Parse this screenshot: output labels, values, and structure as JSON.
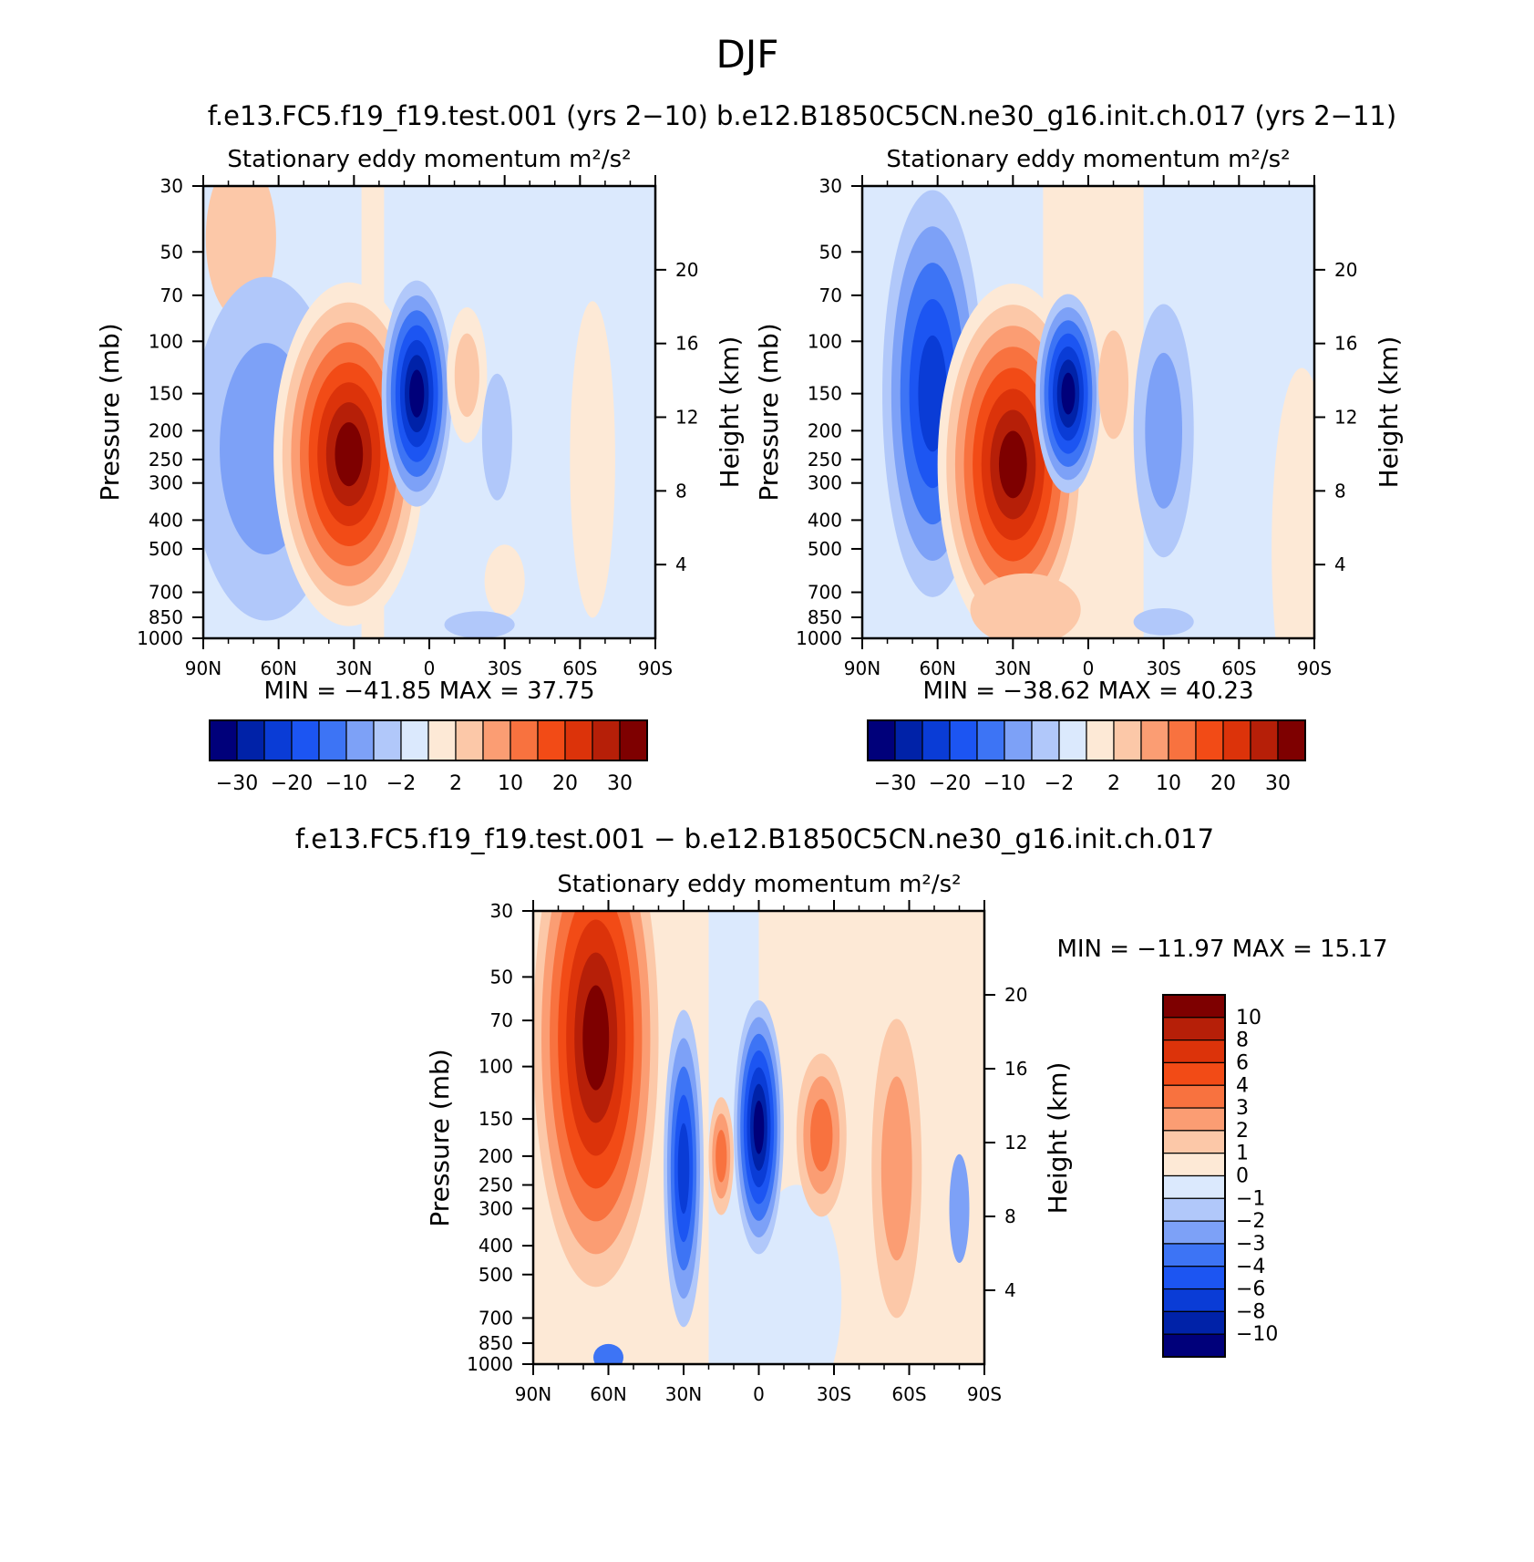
{
  "figure": {
    "title": "DJF",
    "top_header": "f.e13.FC5.f19_f19.test.001 (yrs 2−10)  b.e12.B1850C5CN.ne30_g16.init.ch.017 (yrs 2−11)",
    "bottom_header": "f.e13.FC5.f19_f19.test.001 − b.e12.B1850C5CN.ne30_g16.init.ch.017"
  },
  "palette": {
    "levels16": [
      "#00007a",
      "#0022a8",
      "#0a3cd6",
      "#1c55f2",
      "#3d74f5",
      "#7da1f7",
      "#b1c8fa",
      "#dbe9fd",
      "#fde9d6",
      "#fcc8a8",
      "#fb9d73",
      "#f8723f",
      "#f24b16",
      "#dc330a",
      "#b61f08",
      "#7e0000"
    ],
    "levels16_diff": [
      "#00007a",
      "#0022a8",
      "#0a3cd6",
      "#1c55f2",
      "#3d74f5",
      "#7da1f7",
      "#b1c8fa",
      "#dbe9fd",
      "#fde9d6",
      "#fcc8a8",
      "#fb9d73",
      "#f8723f",
      "#f24b16",
      "#dc330a",
      "#b61f08",
      "#7e0000"
    ]
  },
  "chart_data": [
    {
      "type": "heatmap",
      "panel": "top-left",
      "title": "Stationary eddy momentum  m²/s²",
      "xlabel": "",
      "ylabel": "Pressure (mb)",
      "ylabel_right": "Height (km)",
      "x_ticks": [
        "90N",
        "60N",
        "30N",
        "0",
        "30S",
        "60S",
        "90S"
      ],
      "y_ticks": [
        "30",
        "50",
        "70",
        "100",
        "150",
        "200",
        "250",
        "300",
        "400",
        "500",
        "700",
        "850",
        "1000"
      ],
      "y_ticks_right": [
        "20",
        "16",
        "12",
        "8",
        "4"
      ],
      "min_label": "MIN =  −41.85   MAX =   37.75",
      "min": -41.85,
      "max": 37.75,
      "colorbar_labels": [
        "−30",
        "−20",
        "−10",
        "−2",
        "2",
        "10",
        "20",
        "30"
      ],
      "features": [
        {
          "lat": 30,
          "p": 200,
          "value": 37.75
        },
        {
          "lat": 5,
          "p": 150,
          "value": -41.85
        },
        {
          "lat": 65,
          "p": 200,
          "value": -8
        },
        {
          "lat": -10,
          "p": 150,
          "value": 6
        }
      ]
    },
    {
      "type": "heatmap",
      "panel": "top-right",
      "title": "Stationary eddy momentum  m²/s²",
      "xlabel": "",
      "ylabel": "Pressure (mb)",
      "ylabel_right": "Height (km)",
      "x_ticks": [
        "90N",
        "60N",
        "30N",
        "0",
        "30S",
        "60S",
        "90S"
      ],
      "y_ticks": [
        "30",
        "50",
        "70",
        "100",
        "150",
        "200",
        "250",
        "300",
        "400",
        "500",
        "700",
        "850",
        "1000"
      ],
      "y_ticks_right": [
        "20",
        "16",
        "12",
        "8",
        "4"
      ],
      "min_label": "MIN =  −38.62   MAX =   40.23",
      "min": -38.62,
      "max": 40.23,
      "colorbar_labels": [
        "−30",
        "−20",
        "−10",
        "−2",
        "2",
        "10",
        "20",
        "30"
      ],
      "features": [
        {
          "lat": 30,
          "p": 250,
          "value": 40.23
        },
        {
          "lat": 8,
          "p": 150,
          "value": -38.62
        },
        {
          "lat": 62,
          "p": 100,
          "value": -18
        },
        {
          "lat": -25,
          "p": 150,
          "value": -8
        }
      ]
    },
    {
      "type": "heatmap",
      "panel": "bottom",
      "title": "Stationary eddy momentum  m²/s²",
      "xlabel": "",
      "ylabel": "Pressure (mb)",
      "ylabel_right": "Height (km)",
      "x_ticks": [
        "90N",
        "60N",
        "30N",
        "0",
        "30S",
        "60S",
        "90S"
      ],
      "y_ticks": [
        "30",
        "50",
        "70",
        "100",
        "150",
        "200",
        "250",
        "300",
        "400",
        "500",
        "700",
        "850",
        "1000"
      ],
      "y_ticks_right": [
        "20",
        "16",
        "12",
        "8",
        "4"
      ],
      "min_label": "MIN =  −11.97   MAX =   15.17",
      "min": -11.97,
      "max": 15.17,
      "colorbar_labels": [
        "10",
        "8",
        "6",
        "4",
        "3",
        "2",
        "1",
        "0",
        "−1",
        "−2",
        "−3",
        "−4",
        "−6",
        "−8",
        "−10"
      ],
      "features": [
        {
          "lat": 65,
          "p": 50,
          "value": 15.17
        },
        {
          "lat": 0,
          "p": 150,
          "value": -11.97
        },
        {
          "lat": 30,
          "p": 250,
          "value": -6
        },
        {
          "lat": 15,
          "p": 200,
          "value": 4
        },
        {
          "lat": -25,
          "p": 150,
          "value": 4
        },
        {
          "lat": -55,
          "p": 200,
          "value": 2
        }
      ]
    }
  ]
}
